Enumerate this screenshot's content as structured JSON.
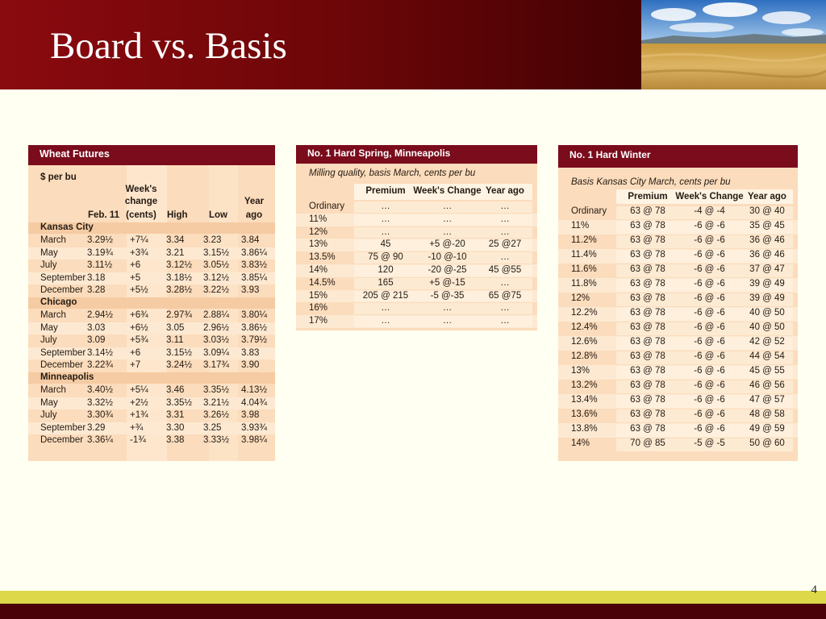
{
  "slide": {
    "title": "Board vs. Basis",
    "page_number": "4"
  },
  "wheat_futures": {
    "title": "Wheat Futures",
    "units": "$ per bu",
    "columns": [
      "Feb. 11",
      "Week's change (cents)",
      "High",
      "Low",
      "Year ago"
    ],
    "col_head": {
      "c2a": "Week's",
      "c2b": "change",
      "c2c": "(cents)",
      "c1": "Feb. 11",
      "c3": "High",
      "c4": "Low",
      "c5a": "Year",
      "c5b": "ago"
    },
    "sections": [
      {
        "name": "Kansas City",
        "rows": [
          [
            "March",
            "3.29½",
            "+7¼",
            "3.34",
            "3.23",
            "3.84"
          ],
          [
            "May",
            "3.19¾",
            "+3¾",
            "3.21",
            "3.15½",
            "3.86¼"
          ],
          [
            "July",
            "3.11½",
            "+6",
            "3.12½",
            "3.05½",
            "3.83½"
          ],
          [
            "September",
            "3.18",
            "+5",
            "3.18½",
            "3.12½",
            "3.85¼"
          ],
          [
            "December",
            "3.28",
            "+5½",
            "3.28½",
            "3.22½",
            "3.93"
          ]
        ]
      },
      {
        "name": "Chicago",
        "rows": [
          [
            "March",
            "2.94½",
            "+6¾",
            "2.97¾",
            "2.88¼",
            "3.80¼"
          ],
          [
            "May",
            "3.03",
            "+6½",
            "3.05",
            "2.96½",
            "3.86½"
          ],
          [
            "July",
            "3.09",
            "+5¾",
            "3.11",
            "3.03½",
            "3.79½"
          ],
          [
            "September",
            "3.14½",
            "+6",
            "3.15½",
            "3.09¼",
            "3.83"
          ],
          [
            "December",
            "3.22¾",
            "+7",
            "3.24½",
            "3.17¾",
            "3.90"
          ]
        ]
      },
      {
        "name": "Minneapolis",
        "rows": [
          [
            "March",
            "3.40½",
            "+5¼",
            "3.46",
            "3.35½",
            "4.13½"
          ],
          [
            "May",
            "3.32½",
            "+2½",
            "3.35½",
            "3.21½",
            "4.04¾"
          ],
          [
            "July",
            "3.30¾",
            "+1¾",
            "3.31",
            "3.26½",
            "3.98"
          ],
          [
            "September",
            "3.29",
            "+¾",
            "3.30",
            "3.25",
            "3.93¾"
          ],
          [
            "December",
            "3.36¼",
            "-1¾",
            "3.38",
            "3.33½",
            "3.98¼"
          ]
        ]
      }
    ]
  },
  "hard_spring": {
    "title": "No. 1 Hard Spring, Minneapolis",
    "subtitle": "Milling quality, basis March, cents per bu",
    "columns": [
      "Premium",
      "Week's Change",
      "Year ago"
    ],
    "rows": [
      [
        "Ordinary",
        "…",
        "…",
        "…"
      ],
      [
        "11%",
        "…",
        "…",
        "…"
      ],
      [
        "12%",
        "…",
        "…",
        "…"
      ],
      [
        "13%",
        "45",
        "+5 @-20",
        "25 @27"
      ],
      [
        "13.5%",
        "75 @ 90",
        "-10 @-10",
        "…"
      ],
      [
        "14%",
        "120",
        "-20 @-25",
        "45 @55"
      ],
      [
        "14.5%",
        "165",
        "+5 @-15",
        "…"
      ],
      [
        "15%",
        "205 @ 215",
        "-5 @-35",
        "65 @75"
      ],
      [
        "16%",
        "…",
        "…",
        "…"
      ],
      [
        "17%",
        "…",
        "…",
        "…"
      ]
    ]
  },
  "hard_winter": {
    "title": "No. 1 Hard Winter",
    "subtitle": "Basis Kansas City March, cents per bu",
    "columns": [
      "Premium",
      "Week's Change",
      "Year ago"
    ],
    "rows": [
      [
        "Ordinary",
        "63 @ 78",
        "-4 @ -4",
        "30 @ 40"
      ],
      [
        "11%",
        "63 @ 78",
        "-6 @ -6",
        "35 @ 45"
      ],
      [
        "11.2%",
        "63 @ 78",
        "-6 @ -6",
        "36 @ 46"
      ],
      [
        "11.4%",
        "63 @ 78",
        "-6 @ -6",
        "36 @ 46"
      ],
      [
        "11.6%",
        "63 @ 78",
        "-6 @ -6",
        "37 @ 47"
      ],
      [
        "11.8%",
        "63 @ 78",
        "-6 @ -6",
        "39 @ 49"
      ],
      [
        "12%",
        "63 @ 78",
        "-6 @ -6",
        "39 @ 49"
      ],
      [
        "12.2%",
        "63 @ 78",
        "-6 @ -6",
        "40 @ 50"
      ],
      [
        "12.4%",
        "63 @ 78",
        "-6 @ -6",
        "40 @ 50"
      ],
      [
        "12.6%",
        "63 @ 78",
        "-6 @ -6",
        "42 @ 52"
      ],
      [
        "12.8%",
        "63 @ 78",
        "-6 @ -6",
        "44 @ 54"
      ],
      [
        "13%",
        "63 @ 78",
        "-6 @ -6",
        "45 @ 55"
      ],
      [
        "13.2%",
        "63 @ 78",
        "-6 @ -6",
        "46 @ 56"
      ],
      [
        "13.4%",
        "63 @ 78",
        "-6 @ -6",
        "47 @ 57"
      ],
      [
        "13.6%",
        "63 @ 78",
        "-6 @ -6",
        "48 @ 58"
      ],
      [
        "13.8%",
        "63 @ 78",
        "-6 @ -6",
        "49 @ 59"
      ],
      [
        "14%",
        "70 @ 85",
        "-5 @ -5",
        "50 @ 60"
      ]
    ]
  }
}
